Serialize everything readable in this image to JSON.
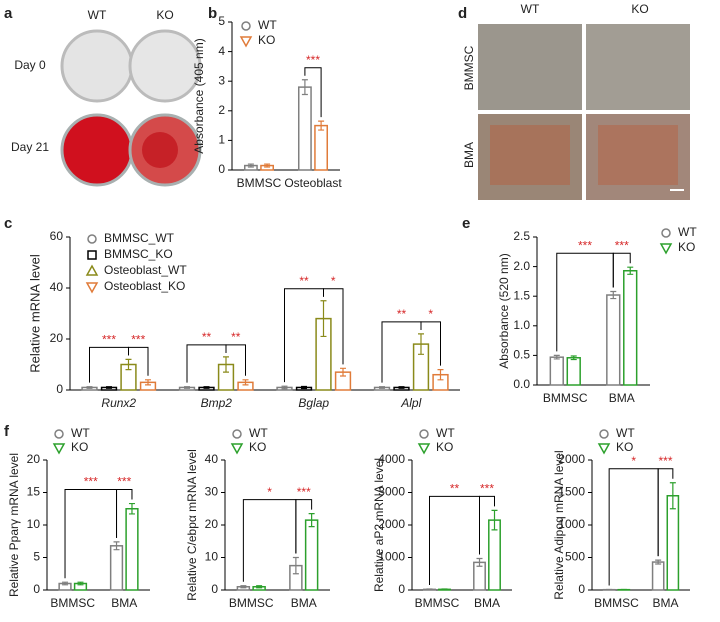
{
  "figure": {
    "panel_labels": [
      "a",
      "b",
      "c",
      "d",
      "e",
      "f"
    ],
    "panel_a": {
      "columns": [
        "WT",
        "KO"
      ],
      "rows": [
        "Day 0",
        "Day 21"
      ]
    },
    "panel_d": {
      "columns": [
        "WT",
        "KO"
      ],
      "rows": [
        "BMMSC",
        "BMA"
      ]
    }
  },
  "chart_data": [
    {
      "type": "bar",
      "ylabel": "Absorbance (405 nm)",
      "categories": [
        "BMMSC",
        "Osteoblast"
      ],
      "ylim": [
        0,
        5
      ],
      "yticks": [
        0,
        1,
        2,
        3,
        4,
        5
      ],
      "legend": "upper left",
      "series": [
        {
          "name": "WT",
          "color": "#7f7f7f",
          "marker": "circle",
          "values": [
            0.15,
            2.8
          ],
          "errors": [
            0.05,
            0.25
          ]
        },
        {
          "name": "KO",
          "color": "#e07b39",
          "marker": "triangle-down",
          "values": [
            0.15,
            1.5
          ],
          "errors": [
            0.05,
            0.15
          ]
        }
      ],
      "annotations": [
        "***"
      ]
    },
    {
      "type": "bar",
      "ylabel": "Relative mRNA level",
      "categories": [
        "Runx2",
        "Bmp2",
        "Bglap",
        "Alpl"
      ],
      "italic_categories": true,
      "ylim": [
        0,
        60
      ],
      "yticks": [
        0,
        20,
        40,
        60
      ],
      "legend": "upper left",
      "series": [
        {
          "name": "BMMSC_WT",
          "color": "#7f7f7f",
          "marker": "circle",
          "values": [
            1,
            1,
            1,
            1
          ],
          "errors": [
            0.3,
            0.3,
            0.5,
            0.3
          ]
        },
        {
          "name": "BMMSC_KO",
          "color": "#000000",
          "marker": "square",
          "values": [
            1,
            1,
            1,
            1
          ],
          "errors": [
            0.3,
            0.3,
            0.4,
            0.3
          ]
        },
        {
          "name": "Osteoblast_WT",
          "color": "#8a8a1a",
          "marker": "triangle-up",
          "values": [
            10,
            10,
            28,
            18
          ],
          "errors": [
            2,
            3,
            7,
            4
          ]
        },
        {
          "name": "Osteoblast_KO",
          "color": "#e07b39",
          "marker": "triangle-down",
          "values": [
            3,
            3,
            7,
            6
          ],
          "errors": [
            1,
            1,
            1.5,
            2
          ]
        }
      ],
      "annotations": [
        [
          "***",
          "***"
        ],
        [
          "**",
          "**"
        ],
        [
          "**",
          "*"
        ],
        [
          "**",
          "*"
        ]
      ]
    },
    {
      "type": "bar",
      "ylabel": "Absorbance (520 nm)",
      "categories": [
        "BMMSC",
        "BMA"
      ],
      "ylim": [
        0,
        2.5
      ],
      "yticks": [
        {
          "value": 0,
          "label": "0.0"
        },
        0.5,
        {
          "value": 1,
          "label": "1.0"
        },
        1.5,
        {
          "value": 2,
          "label": "2.0"
        },
        2.5
      ],
      "legend": "right",
      "series": [
        {
          "name": "WT",
          "color": "#7f7f7f",
          "marker": "circle",
          "values": [
            0.47,
            1.52
          ],
          "errors": [
            0.03,
            0.06
          ]
        },
        {
          "name": "KO",
          "color": "#2ca02c",
          "marker": "triangle-down",
          "values": [
            0.46,
            1.93
          ],
          "errors": [
            0.03,
            0.06
          ]
        }
      ],
      "annotations": [
        "***",
        "***"
      ]
    },
    {
      "type": "bar",
      "ylabel": "Relative Pparγ mRNA level",
      "categories": [
        "BMMSC",
        "BMA"
      ],
      "ylim": [
        0,
        20
      ],
      "yticks": [
        0,
        5,
        10,
        15,
        20
      ],
      "legend": "top",
      "series": [
        {
          "name": "WT",
          "color": "#7f7f7f",
          "marker": "circle",
          "values": [
            1,
            6.8
          ],
          "errors": [
            0.2,
            0.6
          ]
        },
        {
          "name": "KO",
          "color": "#2ca02c",
          "marker": "triangle-down",
          "values": [
            1,
            12.5
          ],
          "errors": [
            0.2,
            0.8
          ]
        }
      ],
      "annotations": [
        "***",
        "***"
      ]
    },
    {
      "type": "bar",
      "ylabel": "Relative C/ebpα mRNA level",
      "categories": [
        "BMMSC",
        "BMA"
      ],
      "ylim": [
        0,
        40
      ],
      "yticks": [
        0,
        10,
        20,
        30,
        40
      ],
      "legend": "top",
      "series": [
        {
          "name": "WT",
          "color": "#7f7f7f",
          "marker": "circle",
          "values": [
            1,
            7.5
          ],
          "errors": [
            0.3,
            2.5
          ]
        },
        {
          "name": "KO",
          "color": "#2ca02c",
          "marker": "triangle-down",
          "values": [
            1,
            21.5
          ],
          "errors": [
            0.3,
            2
          ]
        }
      ],
      "annotations": [
        "*",
        "***"
      ]
    },
    {
      "type": "bar",
      "ylabel": "Relative aP2 mRNA level",
      "categories": [
        "BMMSC",
        "BMA"
      ],
      "ylim": [
        0,
        4000
      ],
      "yticks": [
        0,
        1000,
        2000,
        3000,
        4000
      ],
      "legend": "top",
      "series": [
        {
          "name": "WT",
          "color": "#7f7f7f",
          "marker": "circle",
          "values": [
            20,
            850
          ],
          "errors": [
            10,
            120
          ]
        },
        {
          "name": "KO",
          "color": "#2ca02c",
          "marker": "triangle-down",
          "values": [
            20,
            2150
          ],
          "errors": [
            10,
            300
          ]
        }
      ],
      "annotations": [
        "**",
        "***"
      ]
    },
    {
      "type": "bar",
      "ylabel": "Relative Adipoq mRNA level",
      "categories": [
        "BMMSC",
        "BMA"
      ],
      "ylim": [
        0,
        2000
      ],
      "yticks": [
        0,
        500,
        1000,
        1500,
        2000
      ],
      "legend": "top",
      "series": [
        {
          "name": "WT",
          "color": "#7f7f7f",
          "marker": "circle",
          "values": [
            5,
            430
          ],
          "errors": [
            3,
            30
          ]
        },
        {
          "name": "KO",
          "color": "#2ca02c",
          "marker": "triangle-down",
          "values": [
            5,
            1450
          ],
          "errors": [
            3,
            200
          ]
        }
      ],
      "annotations": [
        "*",
        "***"
      ]
    }
  ]
}
